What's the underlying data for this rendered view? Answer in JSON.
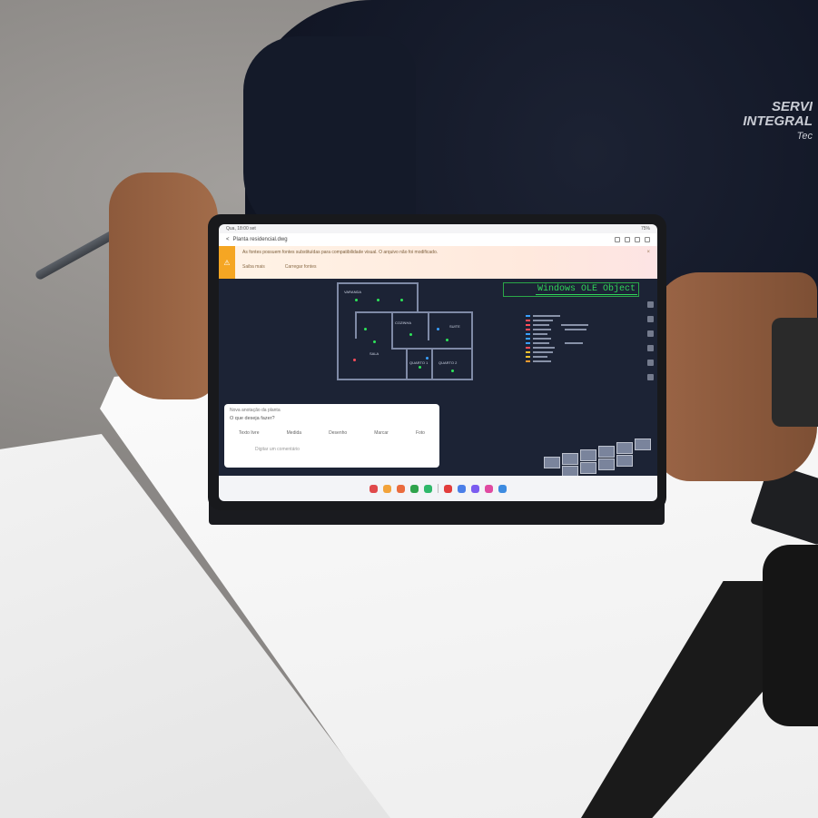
{
  "scene": {
    "shirt_logo": [
      "SERVI",
      "INTEGRAL",
      "Tec"
    ]
  },
  "status_bar": {
    "time": "Qua, 18:00 set",
    "battery": "75%"
  },
  "app": {
    "file_title": "Planta residencial.dwg"
  },
  "banner": {
    "message": "As fontes possuem fontes substituídas para compatibilidade visual. O arquivo não foi modificado.",
    "action_1": "Saiba mais",
    "action_2": "Carregar fontes",
    "close_glyph": "×",
    "warning_glyph": "⚠"
  },
  "drawing": {
    "ole_label": "Windows OLE Object",
    "rooms": [
      "VARANDA",
      "COZINHA",
      "SUITE",
      "SALA",
      "QUARTO 1",
      "QUARTO 2"
    ]
  },
  "comment": {
    "header": "Nova anotação da planta",
    "question": "O que deseja fazer?",
    "options": [
      "Texto livre",
      "Medida",
      "Desenho",
      "Marcar",
      "Foto"
    ],
    "input_placeholder": "Digitar um comentário"
  },
  "colors": {
    "banner_accent": "#f5a623",
    "cad_background": "#1c2335",
    "ole_green": "#31d45a"
  },
  "dock_apps": [
    "#e0494b",
    "#f2a33a",
    "#ea6b3d",
    "#2fa34b",
    "#2fb86a",
    "#e23c3c",
    "#4a7ee8",
    "#7b5cf0",
    "#e04aa1",
    "#3d8be0"
  ]
}
